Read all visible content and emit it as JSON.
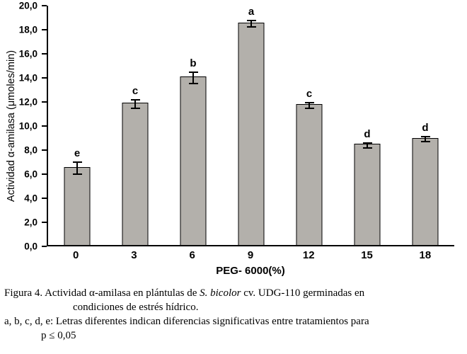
{
  "chart_data": {
    "type": "bar",
    "title": "",
    "xlabel": "PEG- 6000(%)",
    "ylabel": "Actividad α-amilasa (μmoles/min)",
    "categories": [
      "0",
      "3",
      "6",
      "9",
      "12",
      "15",
      "18"
    ],
    "values": [
      6.5,
      11.8,
      14.0,
      18.5,
      11.7,
      8.4,
      8.9
    ],
    "errors": [
      0.5,
      0.35,
      0.45,
      0.25,
      0.25,
      0.2,
      0.2
    ],
    "letters": [
      "e",
      "c",
      "b",
      "a",
      "c",
      "d",
      "d"
    ],
    "ylim": [
      0,
      20
    ],
    "ytick_values": [
      0,
      2,
      4,
      6,
      8,
      10,
      12,
      14,
      16,
      18,
      20
    ],
    "ytick_labels": [
      "0,0",
      "2,0",
      "4,0",
      "6,0",
      "8,0",
      "10,0",
      "12,0",
      "14,0",
      "16,0",
      "18,0",
      "20,0"
    ],
    "bar_color": "#b3b0ab",
    "bar_border": "#000000",
    "grid": false,
    "legend": false
  },
  "caption": {
    "line1_pre": "Figura 4. Actividad α-amilasa en plántulas de ",
    "line1_italic": "S. bicolor",
    "line1_post": " cv. UDG-110 germinadas en",
    "line2": "condiciones de estrés hídrico.",
    "line3": "a, b, c, d, e: Letras diferentes indican diferencias significativas entre tratamientos para",
    "line4": "p ≤ 0,05"
  }
}
